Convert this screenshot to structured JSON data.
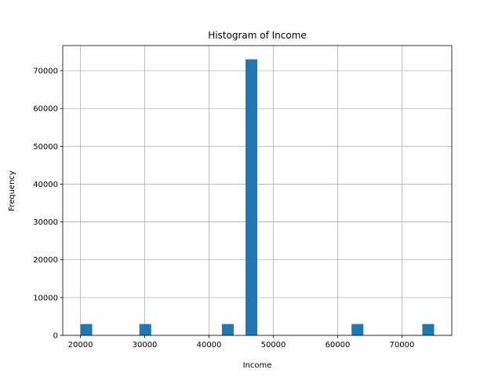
{
  "chart_data": {
    "type": "bar",
    "title": "Histogram of Income",
    "xlabel": "Income",
    "ylabel": "Frequency",
    "xlim": [
      17250,
      77750
    ],
    "ylim": [
      0,
      76650
    ],
    "grid": true,
    "bar_color": "#1f77b4",
    "grid_color": "#b0b0b0",
    "xticks": [
      20000,
      30000,
      40000,
      50000,
      60000,
      70000
    ],
    "yticks": [
      0,
      10000,
      20000,
      30000,
      40000,
      50000,
      60000,
      70000
    ],
    "bins": [
      {
        "x0": 20000,
        "x1": 21833,
        "count": 3000
      },
      {
        "x0": 29167,
        "x1": 31000,
        "count": 3000
      },
      {
        "x0": 42000,
        "x1": 43833,
        "count": 3000
      },
      {
        "x0": 45667,
        "x1": 47500,
        "count": 73000
      },
      {
        "x0": 62167,
        "x1": 64000,
        "count": 3000
      },
      {
        "x0": 73167,
        "x1": 75000,
        "count": 3000
      }
    ]
  }
}
